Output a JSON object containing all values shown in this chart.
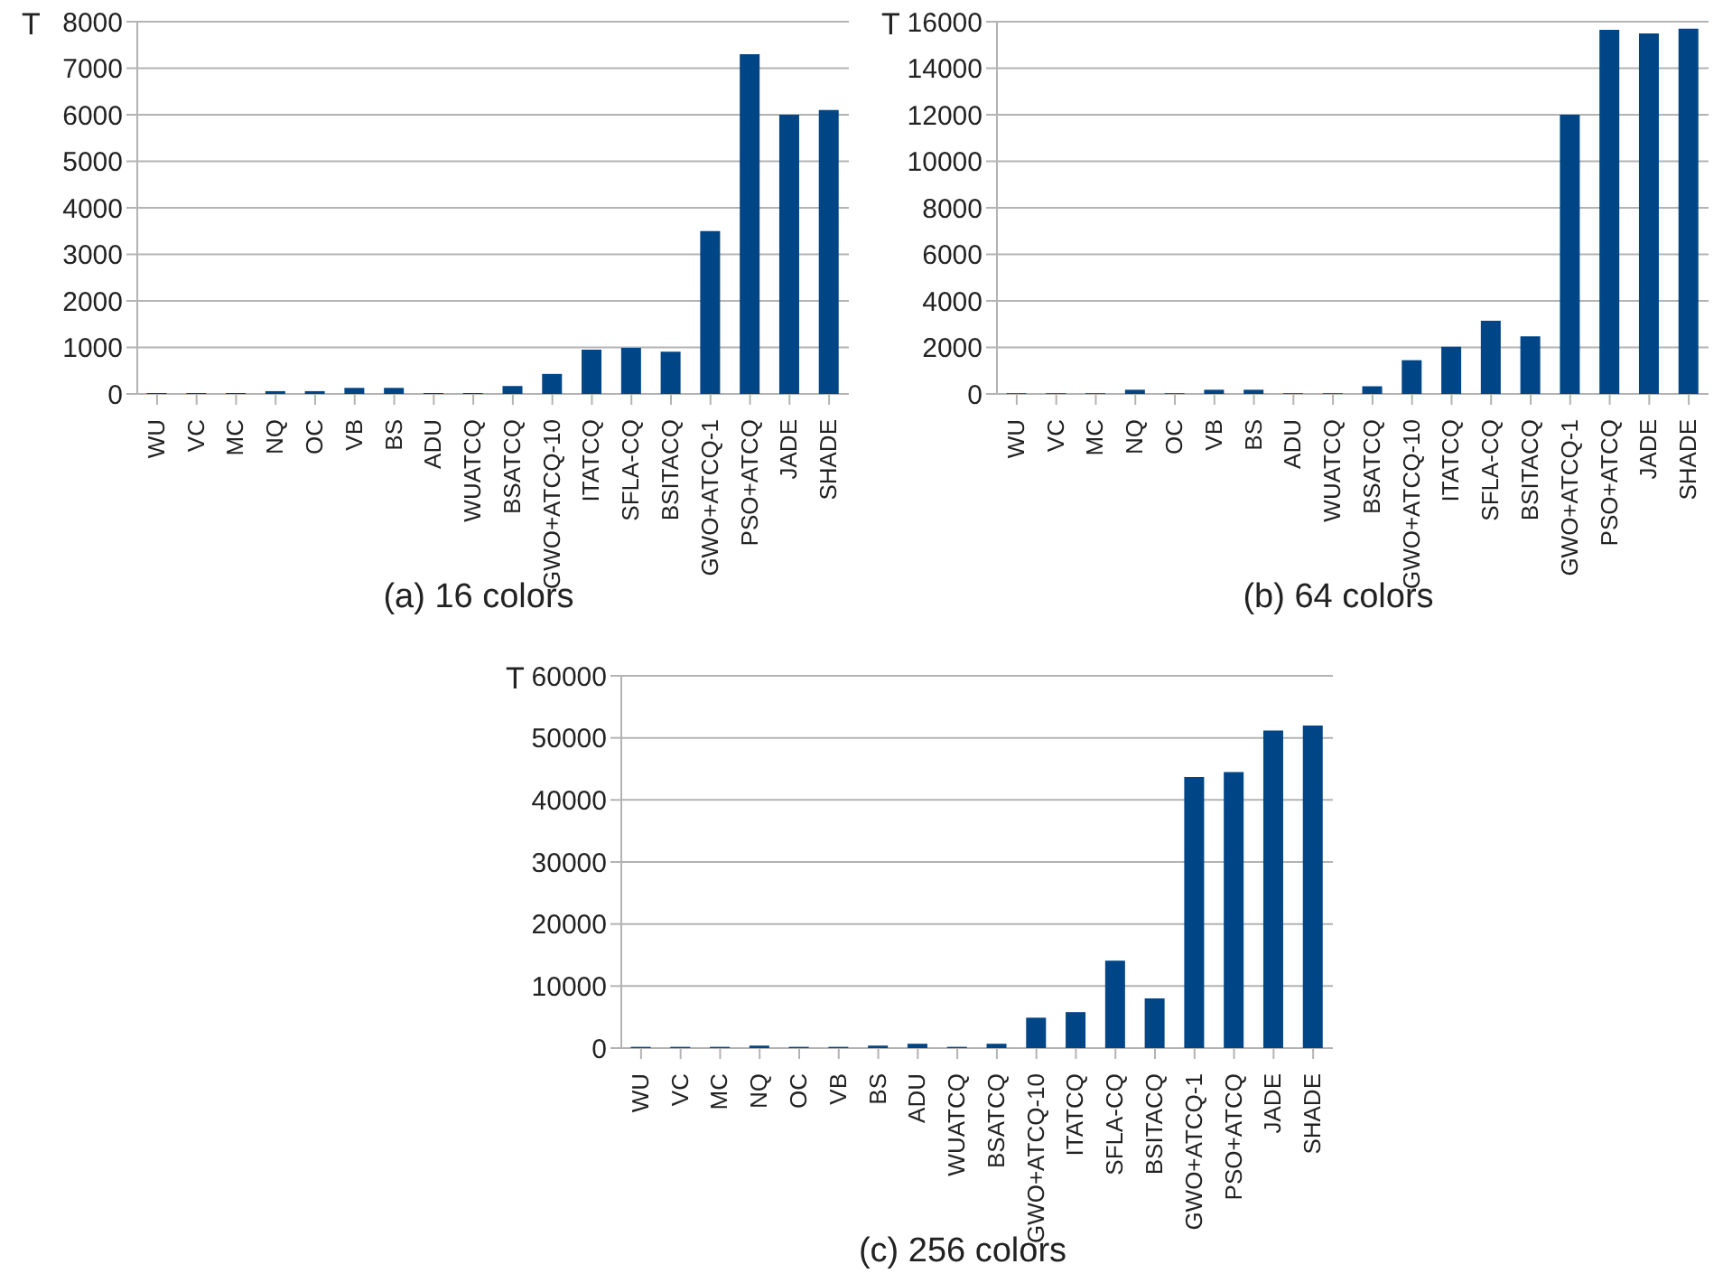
{
  "chart_data": [
    {
      "type": "bar",
      "title": "(a) 16 colors",
      "ylabel": "T",
      "categories": [
        "WU",
        "VC",
        "MC",
        "NQ",
        "OC",
        "VB",
        "BS",
        "ADU",
        "WUATCQ",
        "BSATCQ",
        "GWO+ATCQ-10",
        "ITATCQ",
        "SFLA-CQ",
        "BSITACQ",
        "GWO+ATCQ-1",
        "PSO+ATCQ",
        "JADE",
        "SHADE"
      ],
      "values": [
        20,
        20,
        20,
        60,
        60,
        130,
        130,
        20,
        20,
        170,
        430,
        950,
        990,
        910,
        3500,
        7300,
        6000,
        6100
      ],
      "color": "#004586",
      "ylim": [
        0,
        8000
      ],
      "yticks": [
        0,
        1000,
        2000,
        3000,
        4000,
        5000,
        6000,
        7000,
        8000
      ],
      "grid": "y",
      "legend": false
    },
    {
      "type": "bar",
      "title": "(b) 64 colors",
      "ylabel": "T",
      "categories": [
        "WU",
        "VC",
        "MC",
        "NQ",
        "OC",
        "VB",
        "BS",
        "ADU",
        "WUATCQ",
        "BSATCQ",
        "GWO+ATCQ-10",
        "ITATCQ",
        "SFLA-CQ",
        "BSITACQ",
        "GWO+ATCQ-1",
        "PSO+ATCQ",
        "JADE",
        "SHADE"
      ],
      "values": [
        30,
        30,
        30,
        180,
        30,
        180,
        180,
        30,
        30,
        330,
        1450,
        2030,
        3150,
        2480,
        12000,
        15650,
        15500,
        15700
      ],
      "color": "#004586",
      "ylim": [
        0,
        16000
      ],
      "yticks": [
        0,
        2000,
        4000,
        6000,
        8000,
        10000,
        12000,
        14000,
        16000
      ],
      "grid": "y",
      "legend": false
    },
    {
      "type": "bar",
      "title": "(c) 256 colors",
      "ylabel": "T",
      "categories": [
        "WU",
        "VC",
        "MC",
        "NQ",
        "OC",
        "VB",
        "BS",
        "ADU",
        "WUATCQ",
        "BSATCQ",
        "GWO+ATCQ-10",
        "ITATCQ",
        "SFLA-CQ",
        "BSITACQ",
        "GWO+ATCQ-1",
        "PSO+ATCQ",
        "JADE",
        "SHADE"
      ],
      "values": [
        200,
        200,
        200,
        400,
        200,
        200,
        400,
        700,
        200,
        700,
        4900,
        5800,
        14100,
        8000,
        43700,
        44500,
        51200,
        52000
      ],
      "color": "#004586",
      "ylim": [
        0,
        60000
      ],
      "yticks": [
        0,
        10000,
        20000,
        30000,
        40000,
        50000,
        60000
      ],
      "grid": "y",
      "legend": false
    }
  ]
}
